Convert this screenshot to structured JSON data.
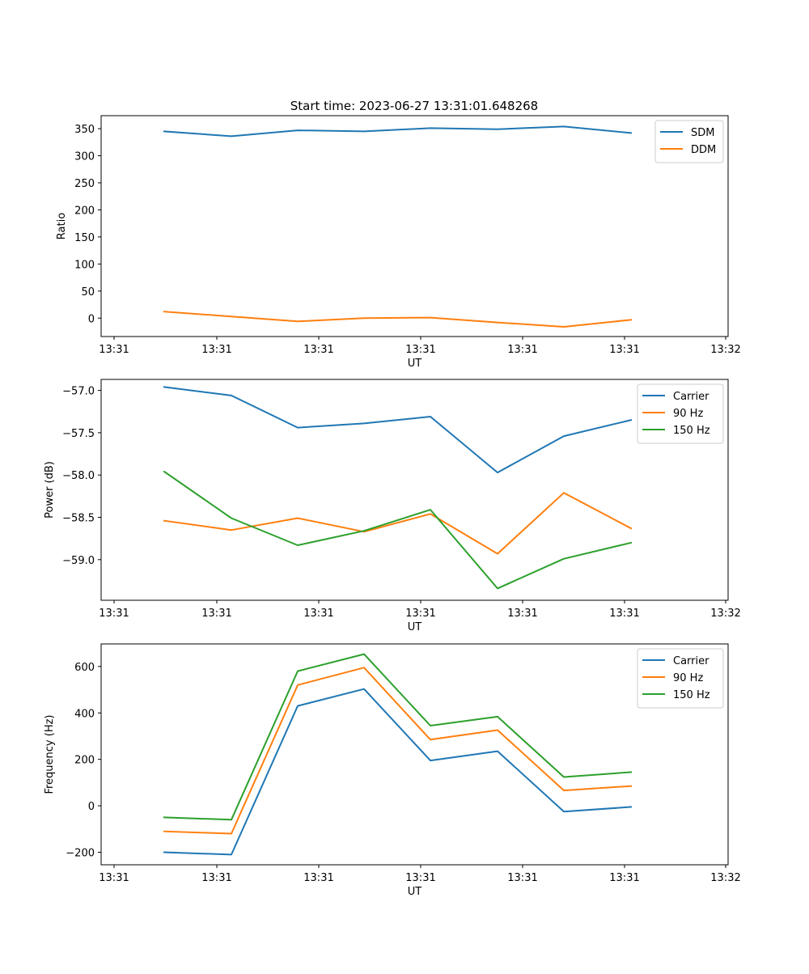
{
  "figure": {
    "title": "Start time: 2023-06-27 13:31:01.648268"
  },
  "chart_data": [
    {
      "type": "line",
      "xlabel": "UT",
      "ylabel": "Ratio",
      "x_tick_labels": [
        "13:31",
        "13:31",
        "13:31",
        "13:31",
        "13:31",
        "13:31",
        "13:32"
      ],
      "y_ticks": [
        0,
        50,
        100,
        150,
        200,
        250,
        300,
        350
      ],
      "ylim": [
        -34,
        374
      ],
      "grid": false,
      "legend": "top-right",
      "series": [
        {
          "name": "SDM",
          "color": "#1f77b4",
          "values": [
            345,
            336,
            347,
            345,
            351,
            349,
            354,
            342
          ]
        },
        {
          "name": "DDM",
          "color": "#ff7f0e",
          "values": [
            12,
            3,
            -6,
            0,
            1,
            -8,
            -16,
            -3
          ]
        }
      ]
    },
    {
      "type": "line",
      "xlabel": "UT",
      "ylabel": "Power (dB)",
      "x_tick_labels": [
        "13:31",
        "13:31",
        "13:31",
        "13:31",
        "13:31",
        "13:31",
        "13:32"
      ],
      "y_ticks": [
        -59.0,
        -58.5,
        -58.0,
        -57.5,
        -57.0
      ],
      "y_tick_labels": [
        "−59.0",
        "−58.5",
        "−58.0",
        "−57.5",
        "−57.0"
      ],
      "ylim": [
        -59.48,
        -56.87
      ],
      "grid": false,
      "legend": "top-right",
      "series": [
        {
          "name": "Carrier",
          "color": "#1f77b4",
          "values": [
            -56.96,
            -57.06,
            -57.44,
            -57.39,
            -57.31,
            -57.97,
            -57.54,
            -57.35
          ]
        },
        {
          "name": "90 Hz",
          "color": "#ff7f0e",
          "values": [
            -58.54,
            -58.65,
            -58.51,
            -58.67,
            -58.46,
            -58.93,
            -58.21,
            -58.63
          ]
        },
        {
          "name": "150 Hz",
          "color": "#2ca02c",
          "values": [
            -57.96,
            -58.51,
            -58.83,
            -58.66,
            -58.41,
            -59.34,
            -58.99,
            -58.8
          ]
        }
      ]
    },
    {
      "type": "line",
      "xlabel": "UT",
      "ylabel": "Frequency (Hz)",
      "x_tick_labels": [
        "13:31",
        "13:31",
        "13:31",
        "13:31",
        "13:31",
        "13:31",
        "13:32"
      ],
      "y_ticks": [
        -200,
        0,
        200,
        400,
        600
      ],
      "y_tick_labels": [
        "−200",
        "0",
        "200",
        "400",
        "600"
      ],
      "ylim": [
        -254,
        697
      ],
      "grid": false,
      "legend": "top-right",
      "series": [
        {
          "name": "Carrier",
          "color": "#1f77b4",
          "values": [
            -200,
            -210,
            430,
            503,
            195,
            235,
            -25,
            -5
          ]
        },
        {
          "name": "90 Hz",
          "color": "#ff7f0e",
          "values": [
            -110,
            -120,
            520,
            595,
            285,
            326,
            66,
            85
          ]
        },
        {
          "name": "150 Hz",
          "color": "#2ca02c",
          "values": [
            -50,
            -60,
            580,
            653,
            345,
            384,
            124,
            145
          ]
        }
      ]
    }
  ]
}
